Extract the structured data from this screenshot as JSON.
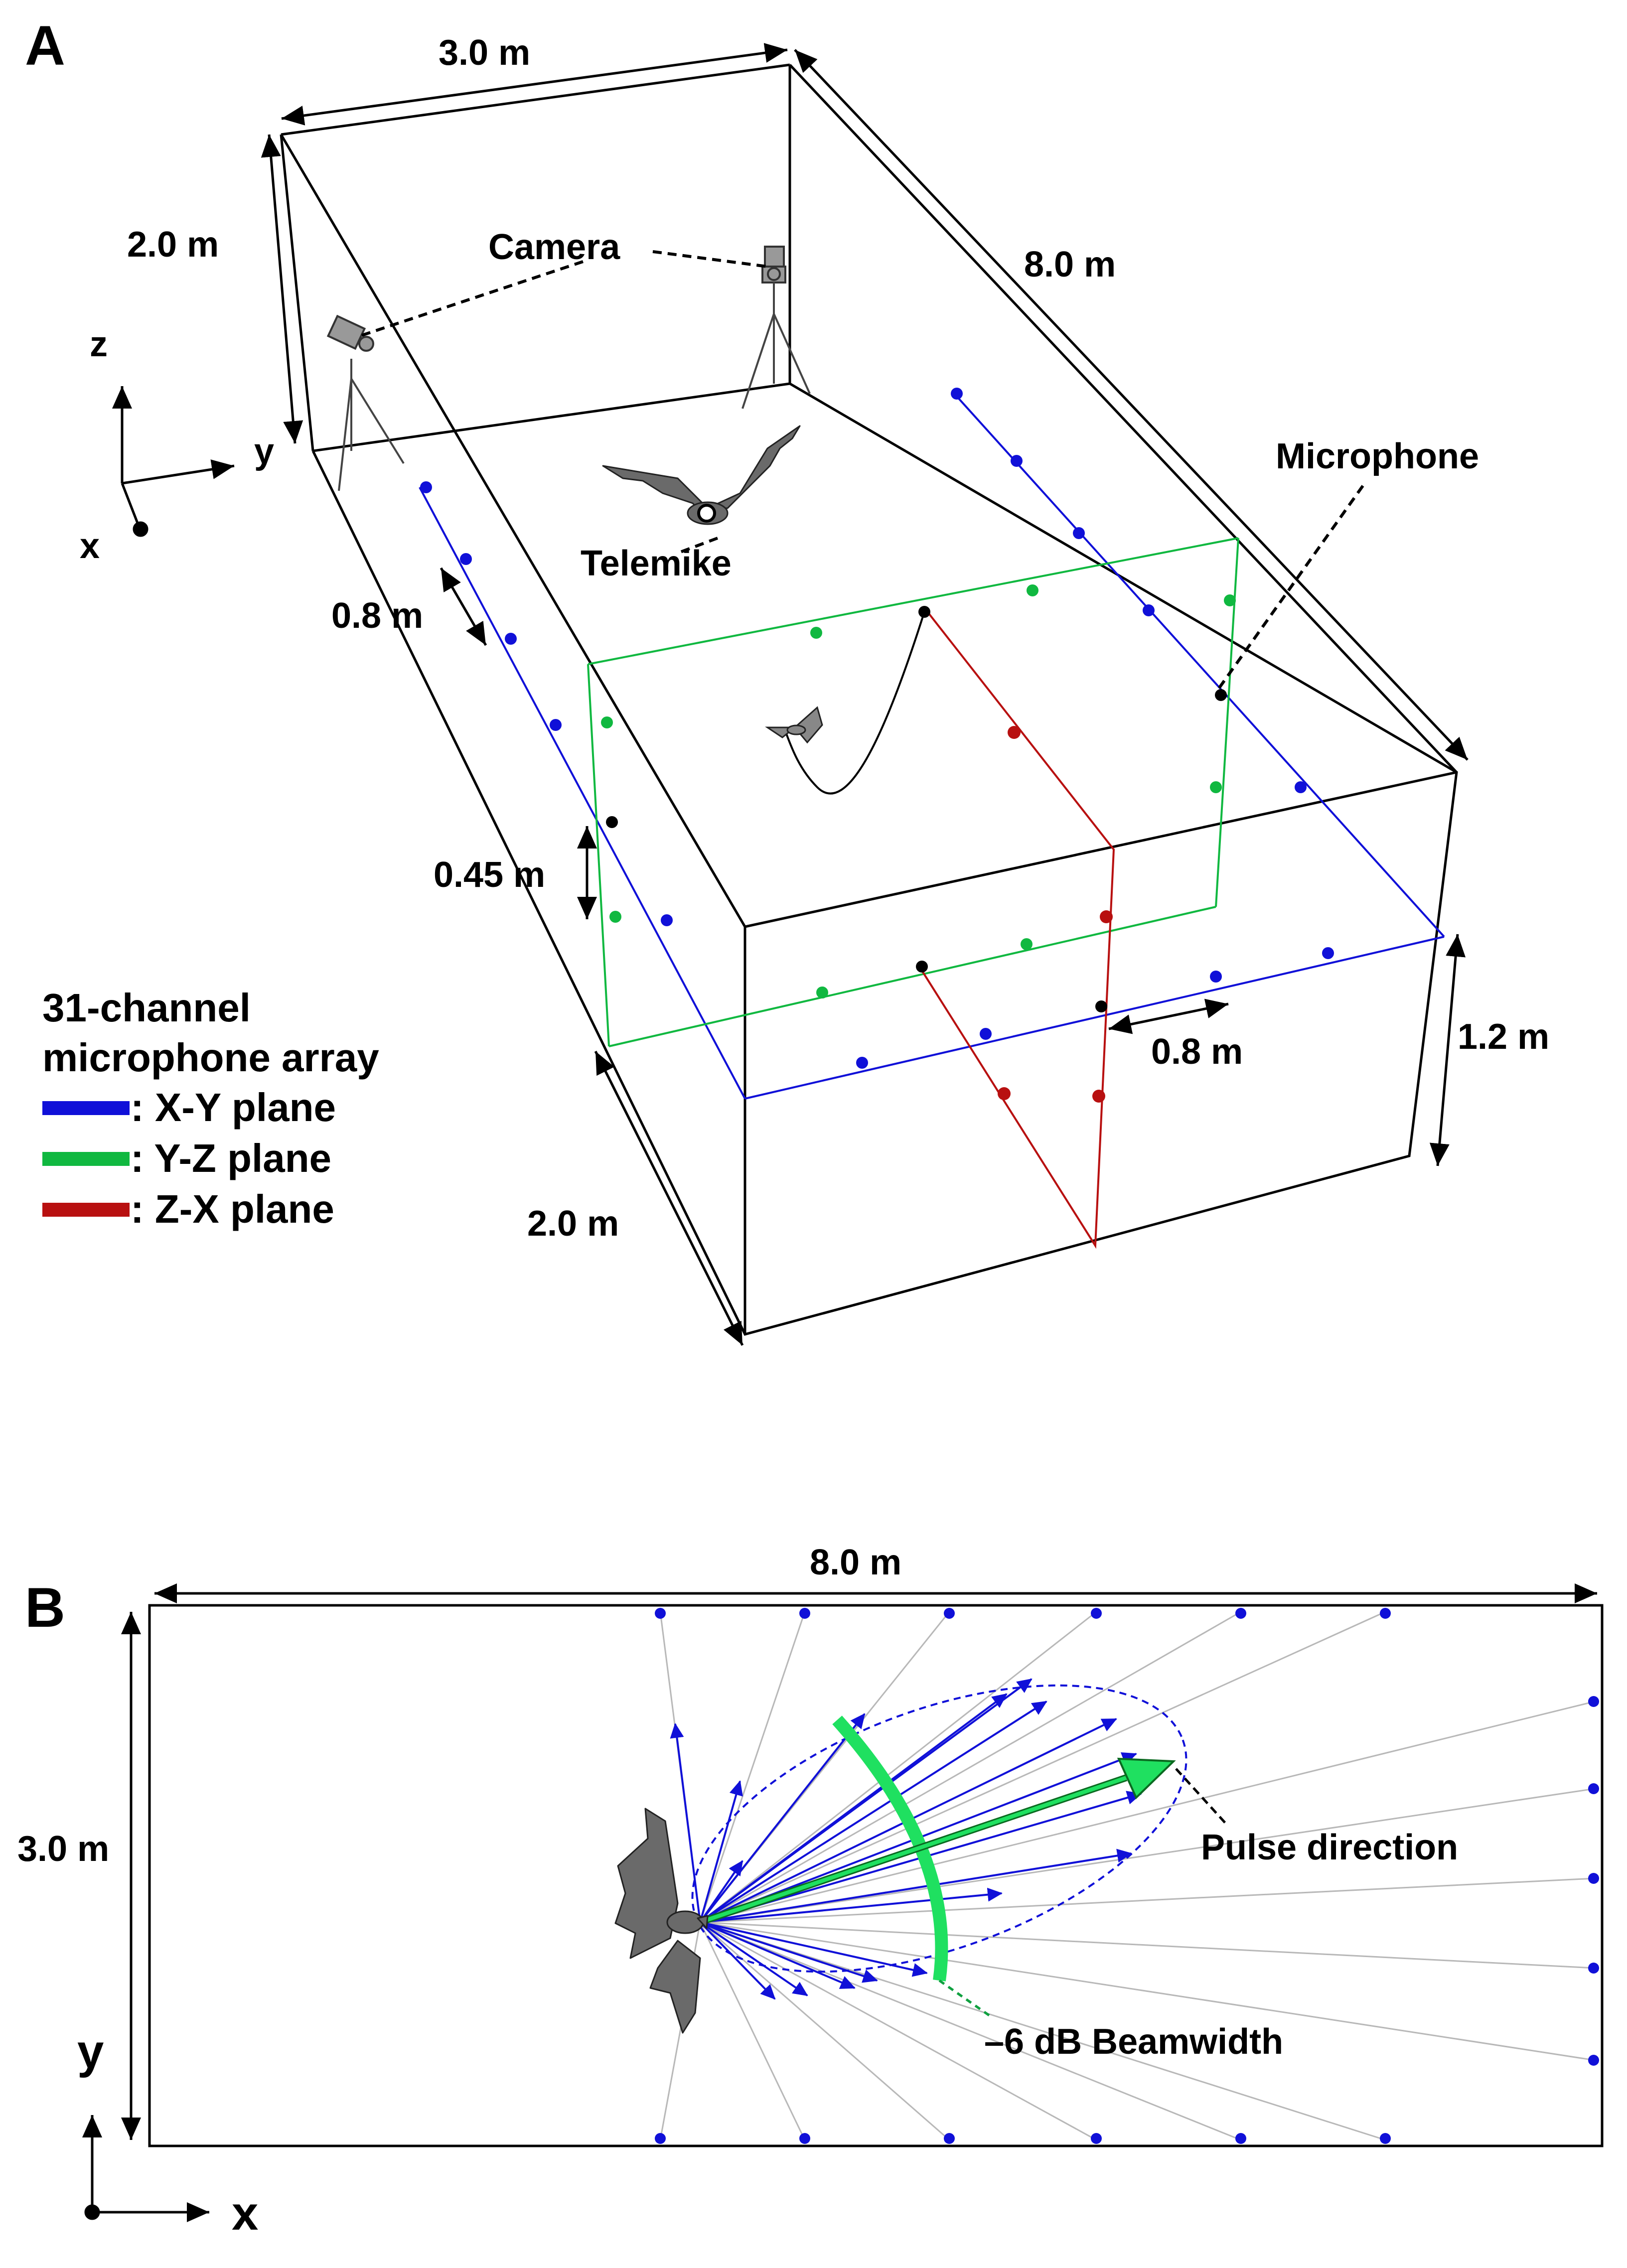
{
  "panel_a": {
    "letter": "A",
    "labels": {
      "width": "3.0 m",
      "height": "2.0 m",
      "length": "8.0 m",
      "camera": "Camera",
      "microphone": "Microphone",
      "telemike": "Telemike",
      "mic_spacing": "0.8 m",
      "vertical_spacing": "0.45 m",
      "mic_spacing_2": "0.8 m",
      "array_height": "1.2 m",
      "floor_depth": "2.0 m"
    },
    "axes": {
      "z": "z",
      "y": "y",
      "x": "x"
    },
    "legend": {
      "title_line1": "31-channel",
      "title_line2": "microphone array",
      "items": [
        {
          "label": ": X-Y plane",
          "color": "#1010d8"
        },
        {
          "label": ": Y-Z plane",
          "color": "#10b840"
        },
        {
          "label": ": Z-X plane",
          "color": "#b81010"
        }
      ]
    }
  },
  "panel_b": {
    "letter": "B",
    "labels": {
      "length": "8.0 m",
      "width": "3.0 m",
      "pulse_direction": "Pulse direction",
      "beamwidth": "–6 dB Beamwidth"
    },
    "axes": {
      "y": "y",
      "x": "x"
    }
  },
  "colors": {
    "xy_plane": "#1010d8",
    "yz_plane": "#10b840",
    "zx_plane": "#b81010",
    "beam_arc": "#1fe060",
    "bat": "#6a6a6a"
  }
}
